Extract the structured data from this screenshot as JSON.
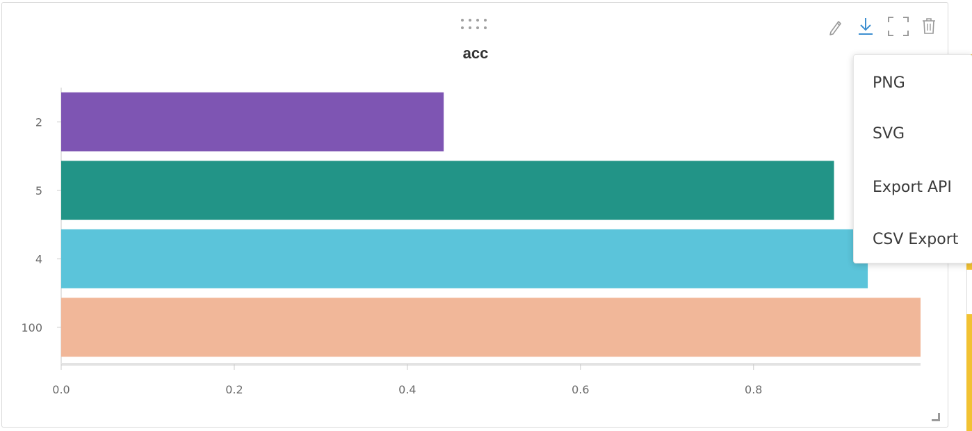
{
  "panel": {
    "toolbar": {
      "edit_icon": "pencil-icon",
      "download_icon": "download-icon",
      "fullscreen_icon": "fullscreen-icon",
      "delete_icon": "trash-icon",
      "download_color": "#3d8fd1",
      "icon_color": "#9a9a9a"
    }
  },
  "export_menu": {
    "items": [
      {
        "label": "PNG"
      },
      {
        "label": "SVG"
      },
      {
        "label": "Export API"
      },
      {
        "label": "CSV Export"
      }
    ]
  },
  "chart_data": {
    "type": "bar",
    "orientation": "horizontal",
    "title": "acc",
    "xlabel": "",
    "ylabel": "",
    "categories": [
      "2",
      "5",
      "4",
      "100"
    ],
    "values": [
      0.442,
      0.893,
      0.932,
      0.993
    ],
    "colors": [
      "#7e55b3",
      "#229487",
      "#5bc4da",
      "#f1b799"
    ],
    "xlim": [
      0,
      0.993
    ],
    "xticks": [
      0.0,
      0.2,
      0.4,
      0.6,
      0.8
    ],
    "xtick_labels": [
      "0.0",
      "0.2",
      "0.4",
      "0.6",
      "0.8"
    ],
    "grid": false,
    "legend": "none"
  }
}
